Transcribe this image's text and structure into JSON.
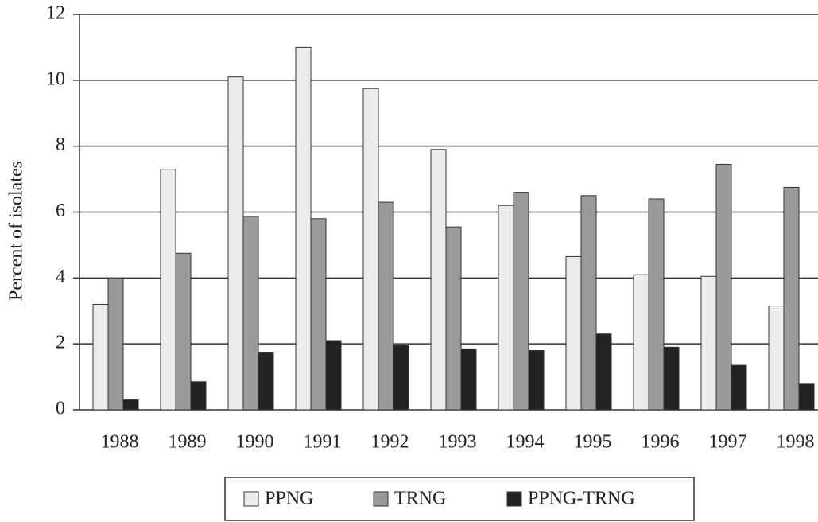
{
  "chart_data": {
    "type": "bar",
    "y_label": "Percent of isolates",
    "categories": [
      "1988",
      "1989",
      "1990",
      "1991",
      "1992",
      "1993",
      "1994",
      "1995",
      "1996",
      "1997",
      "1998"
    ],
    "series": [
      {
        "name": "PPNG",
        "color": "#ececec",
        "values": [
          3.2,
          7.3,
          10.1,
          11.0,
          9.75,
          7.9,
          6.2,
          4.65,
          4.1,
          4.05,
          3.15
        ]
      },
      {
        "name": "TRNG",
        "color": "#9a9a9a",
        "values": [
          4.0,
          4.75,
          5.87,
          5.8,
          6.3,
          5.55,
          6.6,
          6.5,
          6.4,
          7.45,
          6.75
        ]
      },
      {
        "name": "PPNG-TRNG",
        "color": "#222222",
        "values": [
          0.3,
          0.85,
          1.75,
          2.1,
          1.95,
          1.85,
          1.8,
          2.3,
          1.9,
          1.35,
          0.8
        ]
      }
    ],
    "ylim": [
      0,
      12
    ],
    "yticks": [
      0,
      2,
      4,
      6,
      8,
      10,
      12
    ],
    "grid": true,
    "legend": "bottom"
  }
}
